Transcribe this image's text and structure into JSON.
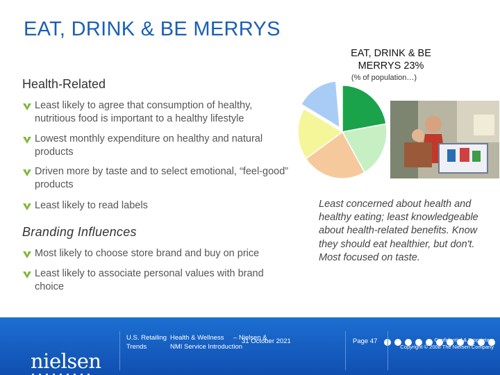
{
  "slide": {
    "title": "EAT, DRINK & BE MERRYS"
  },
  "pie": {
    "title_line1": "EAT, DRINK & BE",
    "title_line2": "MERRYS  23%",
    "subtitle": "(% of population…)",
    "colors": [
      "#1aa34a",
      "#c6f0c4",
      "#f6c99c",
      "#f5f59a",
      "#a8ccf5"
    ]
  },
  "health": {
    "heading": "Health-Related",
    "bullets": [
      "Least likely to agree that consumption of healthy, nutritious food is important to a healthy lifestyle",
      "Lowest monthly expenditure on healthy and natural products",
      "Driven more by taste and to select emotional, “feel-good” products",
      "Least likely to read labels"
    ]
  },
  "branding": {
    "heading": "Branding Influences",
    "bullets": [
      "Most likely to choose store brand and buy on price",
      "Least likely to associate personal values with brand choice"
    ]
  },
  "quote": "Least concerned about health and healthy eating; least knowledgeable about health-related benefits. Know they should eat healthier, but don't. Most focused on taste.",
  "footer": {
    "logo": "nielsen",
    "text_a": "U.S. Retailing",
    "text_b": "Health & Wellness",
    "text_c": "Trends",
    "text_d": "– Nielsen &",
    "text_e": "NMI Service Introduction",
    "date": "31 October 2021",
    "page": "Page 47",
    "confidential": "Confidential & Proprietary",
    "copyright": "Copyright © 2008 The Nielsen Company"
  },
  "colors": {
    "title_blue": "#1a5fb4",
    "bullet_green": "#7cb83a",
    "footer_blue": "#1463c8"
  }
}
